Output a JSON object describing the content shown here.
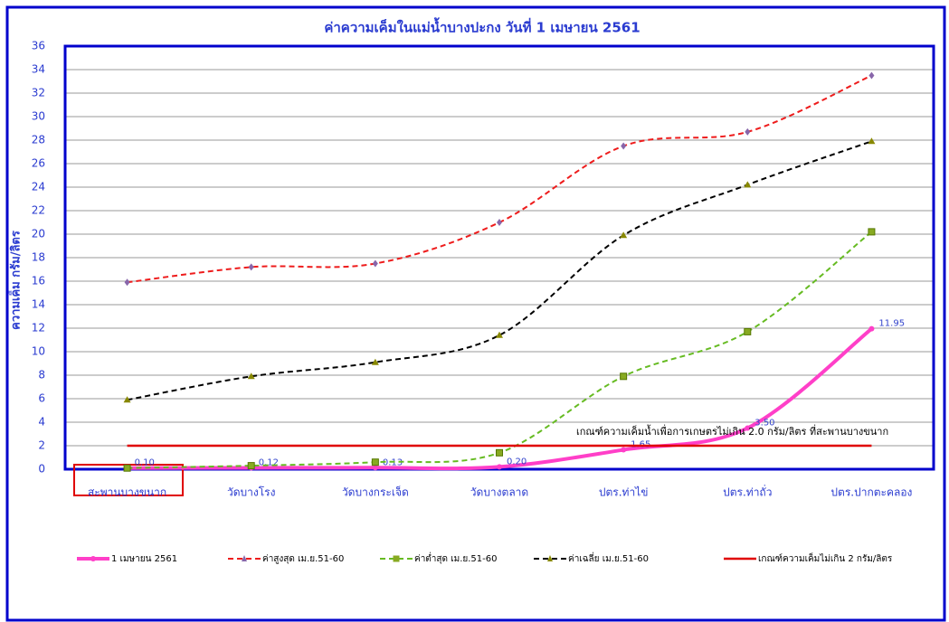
{
  "chart_data": {
    "type": "line",
    "title": "ค่าความเค็มในแม่น้ำบางปะกง วันที่ 1 เมษายน 2561",
    "y_label": "ความเค็ม กรัม/ลิตร",
    "annotation": "เกณฑ์ความเค็มน้ำเพื่อการเกษตรไม่เกิน 2.0 กรัม/ลิตร ที่สะพานบางขนาก",
    "categories": [
      "สะพานบางขนาก",
      "วัดบางโรง",
      "วัดบางกระเจ็ด",
      "วัดบางตลาด",
      "ปตร.ท่าไข่",
      "ปตร.ท่าถั่ว",
      "ปตร.ปากตะคลอง"
    ],
    "series": [
      {
        "name": "1 เมษายน 2561",
        "color": "#ff3fc8",
        "dash": false,
        "smooth": true,
        "marker": "circle",
        "values": [
          0.1,
          0.12,
          0.13,
          0.2,
          1.65,
          3.5,
          11.95
        ],
        "value_labels": [
          "0.10",
          "0.12",
          "0.13",
          "0.20",
          "1.65",
          "3.50",
          "11.95"
        ]
      },
      {
        "name": "ค่าสูงสุด เม.ย.51-60",
        "color": "#ee1c1c",
        "dash": true,
        "smooth": true,
        "marker": "diamond",
        "values": [
          15.9,
          17.2,
          17.5,
          21.0,
          27.5,
          28.7,
          33.5
        ]
      },
      {
        "name": "ค่าต่ำสุด เม.ย.51-60",
        "color": "#66bb22",
        "dash": true,
        "smooth": true,
        "marker": "square",
        "values": [
          0.1,
          0.3,
          0.6,
          1.4,
          7.9,
          11.7,
          20.2
        ]
      },
      {
        "name": "ค่าเฉลี่ย เม.ย.51-60",
        "color": "#000000",
        "dash": true,
        "smooth": true,
        "marker": "triangle",
        "values": [
          5.9,
          7.9,
          9.1,
          11.4,
          19.9,
          24.2,
          27.9
        ]
      },
      {
        "name": "เกณฑ์ความเค็มไม่เกิน 2 กรัม/ลิตร",
        "color": "#e00000",
        "dash": false,
        "smooth": false,
        "marker": "none",
        "values": [
          2,
          2,
          2,
          2,
          2,
          2,
          2
        ]
      }
    ],
    "ylim": [
      0,
      36
    ],
    "yticks": [
      0,
      2,
      4,
      6,
      8,
      10,
      12,
      14,
      16,
      18,
      20,
      22,
      24,
      26,
      28,
      30,
      32,
      34,
      36
    ],
    "grid": true
  }
}
